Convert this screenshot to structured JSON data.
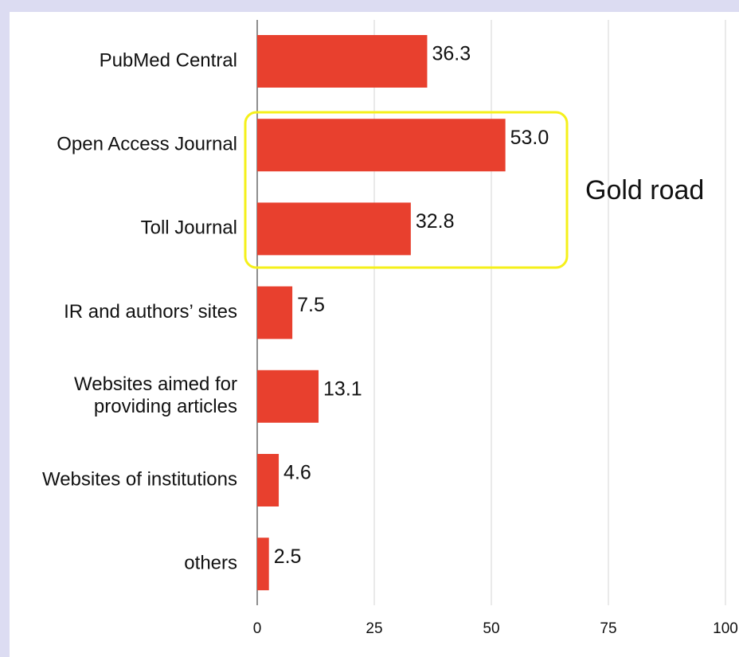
{
  "chart_data": {
    "type": "hbar",
    "categories": [
      "PubMed Central",
      "Open Access Journal",
      "Toll Journal",
      "IR and authors’ sites",
      "Websites aimed for\nproviding articles",
      "Websites of institutions",
      "others"
    ],
    "values": [
      36.3,
      53.0,
      32.8,
      7.5,
      13.1,
      4.6,
      2.5
    ],
    "value_labels": [
      "36.3",
      "53.0",
      "32.8",
      "7.5",
      "13.1",
      "4.6",
      "2.5"
    ],
    "color": "#e8402e",
    "xlim": [
      0,
      100
    ],
    "xticks": [
      0,
      25,
      50,
      75,
      100
    ],
    "grid": true,
    "annotation": "Gold road"
  }
}
